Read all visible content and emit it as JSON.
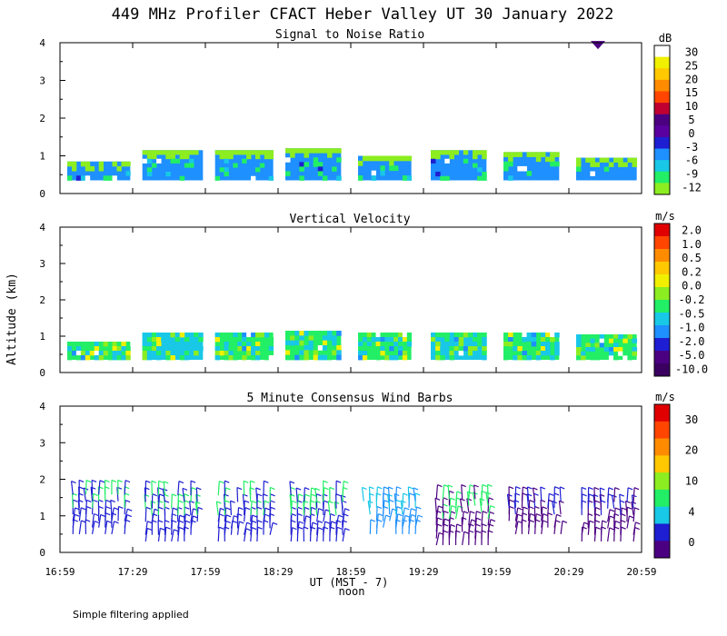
{
  "title": "449 MHz Profiler CFACT Heber Valley UT 30 January 2022",
  "y_axis_label": "Altitude (km)",
  "x_axis": {
    "ticks": [
      "16:59",
      "17:29",
      "17:59",
      "18:29",
      "18:59",
      "19:29",
      "19:59",
      "20:29",
      "20:59"
    ],
    "label": "UT  (MST - 7)",
    "noon_label": "noon"
  },
  "footer_note": "Simple filtering applied",
  "colors": {
    "palette": [
      "#4b0082",
      "#1e1ed2",
      "#1e90ff",
      "#18c8e6",
      "#22ee66",
      "#8ced20",
      "#f0f000",
      "#ffc800",
      "#ff8c00",
      "#ff4500",
      "#e00000",
      "#ffffff"
    ]
  },
  "chart_data": [
    {
      "type": "heatmap",
      "title": "Signal to Noise Ratio",
      "ylabel": "Altitude (km)",
      "ylim": [
        0,
        4
      ],
      "y_ticks": [
        "0",
        "1",
        "2",
        "3",
        "4"
      ],
      "xlim": [
        "16:59",
        "20:59"
      ],
      "colorbar": {
        "unit": "dB",
        "labels": [
          "30",
          "25",
          "20",
          "15",
          "10",
          "5",
          "0",
          "-3",
          "-6",
          "-9",
          "-12"
        ],
        "colors": [
          "#ffffff",
          "#f0f000",
          "#ffc800",
          "#ff8c00",
          "#ff4500",
          "#c00030",
          "#4b0082",
          "#5a00a0",
          "#1e1ed2",
          "#1e90ff",
          "#18c8e6",
          "#22ee66",
          "#8ced20"
        ]
      },
      "blocks": [
        {
          "start": "17:02",
          "end": "17:28",
          "bottom_km": 0.35,
          "top_km": 0.85,
          "dominant": "#1e90ff",
          "top_color": "#8ced20"
        },
        {
          "start": "17:33",
          "end": "17:58",
          "bottom_km": 0.35,
          "top_km": 1.15,
          "dominant": "#1e90ff",
          "top_color": "#8ced20"
        },
        {
          "start": "18:03",
          "end": "18:27",
          "bottom_km": 0.35,
          "top_km": 1.15,
          "dominant": "#1e90ff",
          "top_color": "#8ced20"
        },
        {
          "start": "18:32",
          "end": "18:55",
          "bottom_km": 0.35,
          "top_km": 1.2,
          "dominant": "#1e90ff",
          "top_color": "#8ced20"
        },
        {
          "start": "19:02",
          "end": "19:24",
          "bottom_km": 0.35,
          "top_km": 1.0,
          "dominant": "#1e90ff",
          "top_color": "#8ced20"
        },
        {
          "start": "19:32",
          "end": "19:55",
          "bottom_km": 0.35,
          "top_km": 1.15,
          "dominant": "#1e90ff",
          "top_color": "#8ced20"
        },
        {
          "start": "20:02",
          "end": "20:25",
          "bottom_km": 0.35,
          "top_km": 1.1,
          "dominant": "#1e90ff",
          "top_color": "#8ced20"
        },
        {
          "start": "20:32",
          "end": "20:57",
          "bottom_km": 0.35,
          "top_km": 0.95,
          "dominant": "#1e90ff",
          "top_color": "#8ced20"
        }
      ],
      "annotations": [
        {
          "time": "20:41",
          "alt_km": 3.95,
          "color": "#4b0082"
        }
      ]
    },
    {
      "type": "heatmap",
      "title": "Vertical Velocity",
      "ylabel": "Altitude (km)",
      "ylim": [
        0,
        4
      ],
      "y_ticks": [
        "0",
        "1",
        "2",
        "3",
        "4"
      ],
      "xlim": [
        "16:59",
        "20:59"
      ],
      "colorbar": {
        "unit": "m/s",
        "labels": [
          "2.0",
          "1.0",
          "0.5",
          "0.2",
          "0.0",
          "-0.2",
          "-0.5",
          "-1.0",
          "-2.0",
          "-5.0",
          "-10.0"
        ],
        "colors": [
          "#e00000",
          "#ff4500",
          "#ff8c00",
          "#ffc800",
          "#f0f000",
          "#8ced20",
          "#22ee66",
          "#18c8e6",
          "#1e90ff",
          "#1e1ed2",
          "#4b0082",
          "#3a0060"
        ]
      },
      "blocks": [
        {
          "start": "17:02",
          "end": "17:28",
          "bottom_km": 0.35,
          "top_km": 0.85,
          "dominant": "#22ee66"
        },
        {
          "start": "17:33",
          "end": "17:58",
          "bottom_km": 0.35,
          "top_km": 1.1,
          "dominant": "#18c8e6"
        },
        {
          "start": "18:03",
          "end": "18:27",
          "bottom_km": 0.35,
          "top_km": 1.1,
          "dominant": "#22ee66"
        },
        {
          "start": "18:32",
          "end": "18:55",
          "bottom_km": 0.35,
          "top_km": 1.15,
          "dominant": "#22ee66"
        },
        {
          "start": "19:02",
          "end": "19:24",
          "bottom_km": 0.35,
          "top_km": 1.1,
          "dominant": "#22ee66"
        },
        {
          "start": "19:32",
          "end": "19:55",
          "bottom_km": 0.35,
          "top_km": 1.1,
          "dominant": "#18c8e6"
        },
        {
          "start": "20:02",
          "end": "20:25",
          "bottom_km": 0.35,
          "top_km": 1.1,
          "dominant": "#22ee66"
        },
        {
          "start": "20:32",
          "end": "20:57",
          "bottom_km": 0.35,
          "top_km": 1.05,
          "dominant": "#22ee66"
        }
      ]
    },
    {
      "type": "scatter",
      "title": "5 Minute Consensus Wind Barbs",
      "ylabel": "Altitude (km)",
      "ylim": [
        0,
        4
      ],
      "y_ticks": [
        "0",
        "1",
        "2",
        "3",
        "4"
      ],
      "xlim": [
        "16:59",
        "20:59"
      ],
      "colorbar": {
        "unit": "m/s",
        "labels": [
          "30",
          "20",
          "10",
          "4",
          "0"
        ],
        "colors": [
          "#e00000",
          "#ff4500",
          "#ff8c00",
          "#ffc800",
          "#8ced20",
          "#22ee66",
          "#18c8e6",
          "#1e1ed2",
          "#4b0082"
        ]
      },
      "barb_groups": [
        {
          "start": "17:03",
          "end": "17:27",
          "bottom_km": 0.5,
          "top_km": 1.6,
          "low_color": "#1e1ed2",
          "high_color": "#22ee66"
        },
        {
          "start": "17:33",
          "end": "17:57",
          "bottom_km": 0.3,
          "top_km": 1.6,
          "low_color": "#1e1ed2",
          "high_color": "#22ee66"
        },
        {
          "start": "18:03",
          "end": "18:27",
          "bottom_km": 0.3,
          "top_km": 1.6,
          "low_color": "#1e1ed2",
          "high_color": "#22ee66"
        },
        {
          "start": "18:33",
          "end": "18:57",
          "bottom_km": 0.3,
          "top_km": 1.6,
          "low_color": "#1e1ed2",
          "high_color": "#22ee66"
        },
        {
          "start": "19:03",
          "end": "19:27",
          "bottom_km": 0.5,
          "top_km": 1.5,
          "low_color": "#1e90ff",
          "high_color": "#18c8e6"
        },
        {
          "start": "19:33",
          "end": "19:57",
          "bottom_km": 0.2,
          "top_km": 1.5,
          "low_color": "#4b0082",
          "high_color": "#22ee66"
        },
        {
          "start": "20:03",
          "end": "20:27",
          "bottom_km": 0.5,
          "top_km": 1.5,
          "low_color": "#4b0082",
          "high_color": "#1e1ed2"
        },
        {
          "start": "20:33",
          "end": "20:57",
          "bottom_km": 0.3,
          "top_km": 1.5,
          "low_color": "#4b0082",
          "high_color": "#1e1ed2"
        }
      ]
    }
  ]
}
